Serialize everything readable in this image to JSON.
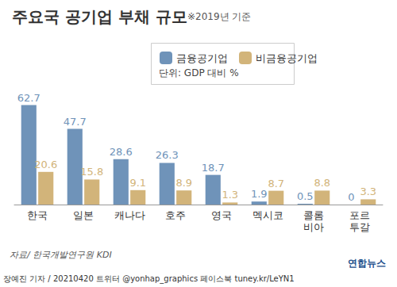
{
  "chart_data": {
    "type": "bar",
    "title": "주요국 공기업 부채 규모",
    "subtitle": "※2019년 기준",
    "unit": "단위: GDP 대비 %",
    "source": "자료/ 한국개발연구원 KDI",
    "credit": "장예진 기자 / 20210420 트위터 @yonhap_graphics 페이스북 tuney.kr/LeYN1",
    "logo": "연합뉴스",
    "categories": [
      "한국",
      "일본",
      "캐나다",
      "호주",
      "영국",
      "멕시코",
      "콜롬\n비아",
      "포르\n투갈"
    ],
    "series": [
      {
        "name": "금융공기업",
        "color": "#6f93b9",
        "values": [
          62.7,
          47.7,
          28.6,
          26.3,
          18.7,
          1.9,
          0.5,
          0
        ]
      },
      {
        "name": "비금융공기업",
        "color": "#d2b47a",
        "values": [
          20.6,
          15.8,
          9.1,
          8.9,
          1.3,
          8.7,
          8.8,
          3.3
        ]
      }
    ],
    "ylim": [
      0,
      70
    ],
    "grid": false,
    "legend": "top",
    "data_labels": true,
    "tick_labels": "x"
  }
}
